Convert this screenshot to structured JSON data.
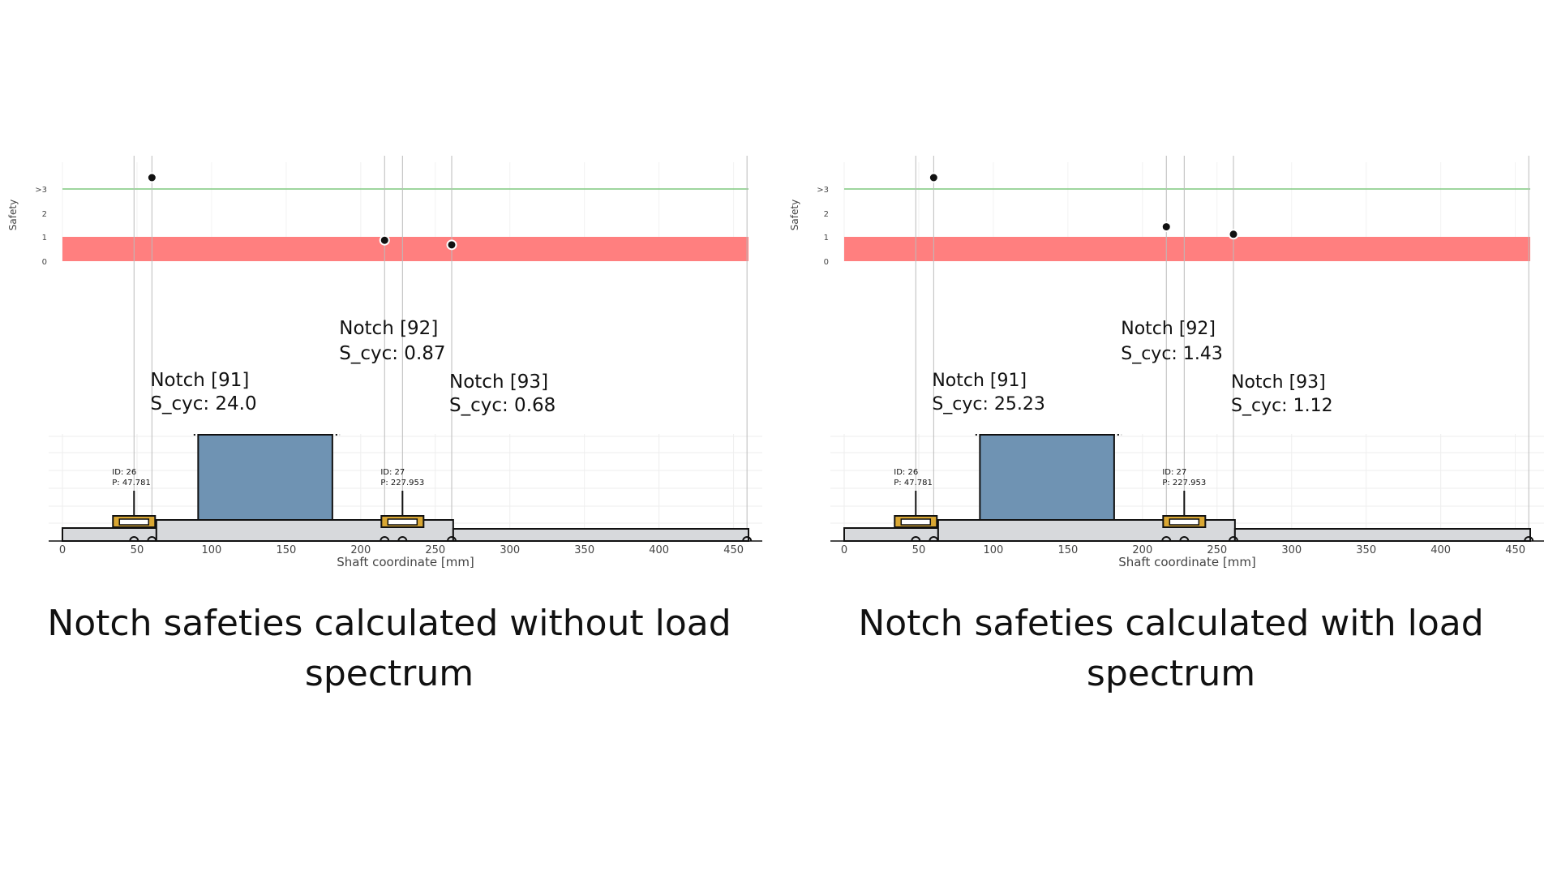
{
  "chart_data": [
    {
      "type": "scatter",
      "title": "",
      "ylabel": "Safety",
      "xlabel": "Shaft coordinate [mm]",
      "y_tick_labels": [
        "0",
        "1",
        "2",
        ">3"
      ],
      "x_ticks": [
        0,
        50,
        100,
        150,
        200,
        250,
        300,
        350,
        400,
        450
      ],
      "x_tick_labels": [
        "0",
        "50",
        "100",
        "150",
        "200",
        "250",
        "300",
        "350",
        "400",
        "450"
      ],
      "xlim": [
        0,
        460
      ],
      "ylim": [
        0,
        3.4
      ],
      "critical_band": [
        0,
        1
      ],
      "target_line": 3,
      "grid": true,
      "points": [
        {
          "x": 60,
          "y": 3.4,
          "line1": "Notch [91]",
          "line2": "S_cyc: 24.0"
        },
        {
          "x": 216,
          "y": 0.87,
          "line1": "Notch [92]",
          "line2": "S_cyc: 0.87"
        },
        {
          "x": 261,
          "y": 0.68,
          "line1": "Notch [93]",
          "line2": "S_cyc: 0.68"
        }
      ],
      "notch_positions": [
        48,
        60,
        216,
        228,
        261,
        459
      ],
      "bearings": [
        {
          "x": 48,
          "id_label": "ID: 26",
          "p_label": "P: 47.781"
        },
        {
          "x": 228,
          "id_label": "ID: 27",
          "p_label": "P: 227.953"
        }
      ],
      "caption": "Notch safeties calculated without load spectrum"
    },
    {
      "type": "scatter",
      "title": "",
      "ylabel": "Safety",
      "xlabel": "Shaft coordinate [mm]",
      "y_tick_labels": [
        "0",
        "1",
        "2",
        ">3"
      ],
      "x_ticks": [
        0,
        50,
        100,
        150,
        200,
        250,
        300,
        350,
        400,
        450
      ],
      "x_tick_labels": [
        "0",
        "50",
        "100",
        "150",
        "200",
        "250",
        "300",
        "350",
        "400",
        "450"
      ],
      "xlim": [
        0,
        460
      ],
      "ylim": [
        0,
        3.4
      ],
      "critical_band": [
        0,
        1
      ],
      "target_line": 3,
      "grid": true,
      "points": [
        {
          "x": 60,
          "y": 3.4,
          "line1": "Notch [91]",
          "line2": "S_cyc: 25.23"
        },
        {
          "x": 216,
          "y": 1.43,
          "line1": "Notch [92]",
          "line2": "S_cyc: 1.43"
        },
        {
          "x": 261,
          "y": 1.12,
          "line1": "Notch [93]",
          "line2": "S_cyc: 1.12"
        }
      ],
      "notch_positions": [
        48,
        60,
        216,
        228,
        261,
        459
      ],
      "bearings": [
        {
          "x": 48,
          "id_label": "ID: 26",
          "p_label": "P: 47.781"
        },
        {
          "x": 228,
          "id_label": "ID: 27",
          "p_label": "P: 227.953"
        }
      ],
      "caption": "Notch safeties calculated with load spectrum"
    }
  ],
  "colors": {
    "critical_band": "#ff7f7f",
    "target_line": "#7fc97f",
    "gear": "#6f93b3",
    "shaft": "#d7d9dc",
    "bearing": "#d9a733",
    "grid": "#eeeeee",
    "notch_line": "#bbbbbb"
  }
}
